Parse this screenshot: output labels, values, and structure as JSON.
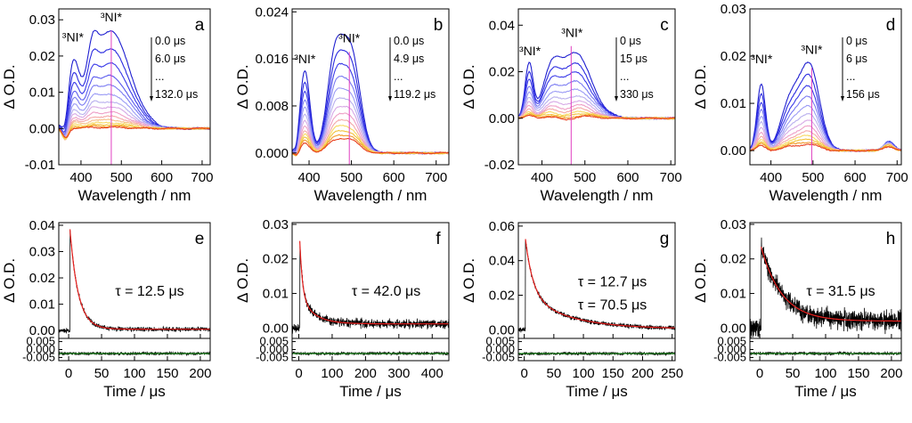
{
  "chart_data": [
    {
      "id": "a",
      "type": "line",
      "letter": "a",
      "xlabel": "Wavelength / nm",
      "ylabel": "Δ O.D.",
      "xlim": [
        345,
        720
      ],
      "ylim": [
        -0.01,
        0.033
      ],
      "xticks": [
        400,
        500,
        600,
        700
      ],
      "xtick_labels": [
        "400",
        "500",
        "600",
        "700"
      ],
      "yticks": [
        -0.01,
        0,
        0.01,
        0.02,
        0.03
      ],
      "ytick_labels": [
        "-0.01",
        "0.00",
        "0.01",
        "0.02",
        "0.03"
      ],
      "peak_labels": [
        {
          "text": "³NI*",
          "x": 380,
          "y": 0.024
        },
        {
          "text": "³NI*",
          "x": 475,
          "y": 0.0295
        }
      ],
      "legend": [
        "0.0 μs",
        "6.0 μs",
        "...",
        "132.0 μs"
      ],
      "marker_x": 475,
      "peaks": [
        {
          "x": 380,
          "w": 14,
          "h": 0.55
        },
        {
          "x": 472,
          "w": 48,
          "h": 1.0
        },
        {
          "x": 428,
          "w": 12,
          "h": 0.3
        }
      ],
      "amplitudes": [
        0.027,
        0.022,
        0.018,
        0.0145,
        0.012,
        0.0095,
        0.0075,
        0.006,
        0.0045,
        0.0033,
        0.0024,
        0.0016,
        0.001,
        0.0006,
        0.0003
      ],
      "dip": {
        "x": 362,
        "w": 8,
        "h": -0.006
      }
    },
    {
      "id": "b",
      "type": "line",
      "letter": "b",
      "xlabel": "Wavelength / nm",
      "ylabel": "Δ O.D.",
      "xlim": [
        360,
        730
      ],
      "ylim": [
        -0.002,
        0.0245
      ],
      "xticks": [
        400,
        500,
        600,
        700
      ],
      "xtick_labels": [
        "400",
        "500",
        "600",
        "700"
      ],
      "yticks": [
        0,
        0.008,
        0.016,
        0.024
      ],
      "ytick_labels": [
        "0.000",
        "0.008",
        "0.016",
        "0.024"
      ],
      "peak_labels": [
        {
          "text": "³NI*",
          "x": 390,
          "y": 0.0153
        },
        {
          "text": "³NI*",
          "x": 495,
          "y": 0.0188
        }
      ],
      "legend": [
        "0.0 μs",
        "4.9 μs",
        "...",
        "119.2 μs"
      ],
      "marker_x": 495,
      "peaks": [
        {
          "x": 390,
          "w": 12,
          "h": 0.82
        },
        {
          "x": 460,
          "w": 18,
          "h": 0.85
        },
        {
          "x": 498,
          "w": 22,
          "h": 1.0
        }
      ],
      "amplitudes": [
        0.0172,
        0.0148,
        0.0128,
        0.011,
        0.0094,
        0.008,
        0.0068,
        0.0057,
        0.0047,
        0.0039,
        0.0032,
        0.0026,
        0.0021
      ],
      "dip": {
        "x": 372,
        "w": 6,
        "h": -0.002
      }
    },
    {
      "id": "c",
      "type": "line",
      "letter": "c",
      "xlabel": "Wavelength / nm",
      "ylabel": "Δ O.D.",
      "xlim": [
        345,
        710
      ],
      "ylim": [
        -0.02,
        0.047
      ],
      "xticks": [
        400,
        500,
        600,
        700
      ],
      "xtick_labels": [
        "400",
        "500",
        "600",
        "700"
      ],
      "yticks": [
        -0.02,
        0,
        0.02,
        0.04
      ],
      "ytick_labels": [
        "-0.02",
        "0.00",
        "0.02",
        "0.04"
      ],
      "peak_labels": [
        {
          "text": "³NI*",
          "x": 372,
          "y": 0.027
        },
        {
          "text": "³NI*",
          "x": 470,
          "y": 0.035
        }
      ],
      "legend": [
        "0 μs",
        "15 μs",
        "...",
        "330 μs"
      ],
      "marker_x": 468,
      "peaks": [
        {
          "x": 370,
          "w": 9,
          "h": 0.72
        },
        {
          "x": 470,
          "w": 40,
          "h": 1.0
        },
        {
          "x": 420,
          "w": 18,
          "h": 0.35
        }
      ],
      "amplitudes": [
        0.031,
        0.026,
        0.022,
        0.018,
        0.0145,
        0.0115,
        0.009,
        0.007,
        0.0053,
        0.0039,
        0.0028,
        0.0019,
        0.0012
      ],
      "dip": {
        "x": 455,
        "w": 20,
        "h": -0.004
      }
    },
    {
      "id": "d",
      "type": "line",
      "letter": "d",
      "xlabel": "Wavelength / nm",
      "ylabel": "Δ O.D.",
      "xlim": [
        350,
        710
      ],
      "ylim": [
        -0.003,
        0.03
      ],
      "xticks": [
        400,
        500,
        600,
        700
      ],
      "xtick_labels": [
        "400",
        "500",
        "600",
        "700"
      ],
      "yticks": [
        0,
        0.01,
        0.02,
        0.03
      ],
      "ytick_labels": [
        "0.00",
        "0.01",
        "0.02",
        "0.03"
      ],
      "peak_labels": [
        {
          "text": "³NI*",
          "x": 378,
          "y": 0.0185
        },
        {
          "text": "³NI*",
          "x": 497,
          "y": 0.0205
        }
      ],
      "legend": [
        "0 μs",
        "6 μs",
        "...",
        "156 μs"
      ],
      "marker_x": 497,
      "peaks": [
        {
          "x": 377,
          "w": 10,
          "h": 0.8
        },
        {
          "x": 492,
          "w": 24,
          "h": 1.0
        },
        {
          "x": 445,
          "w": 22,
          "h": 0.55
        }
      ],
      "amplitudes": [
        0.0175,
        0.015,
        0.0128,
        0.0108,
        0.009,
        0.0074,
        0.006,
        0.0048,
        0.0038,
        0.003,
        0.0023,
        0.0017,
        0.0012
      ],
      "dip": {
        "x": 680,
        "w": 12,
        "h": 0.002
      }
    },
    {
      "id": "e",
      "type": "line",
      "letter": "e",
      "xlabel": "Time / μs",
      "ylabel": "Δ O.D.",
      "xlim": [
        -15,
        215
      ],
      "ylim": [
        -0.003,
        0.041
      ],
      "xticks": [
        0,
        50,
        100,
        150,
        200
      ],
      "xtick_labels": [
        "0",
        "50",
        "100",
        "150",
        "200"
      ],
      "yticks": [
        0,
        0.01,
        0.02,
        0.03,
        0.04
      ],
      "ytick_labels": [
        "0.00",
        "0.01",
        "0.02",
        "0.03",
        "0.04"
      ],
      "residual_ylim": [
        -0.007,
        0.007
      ],
      "residual_yticks": [
        -0.005,
        0,
        0.005
      ],
      "residual_ytick_labels": [
        "-0.005",
        "0.000",
        "0.005"
      ],
      "annotations": [
        "τ = 12.5 μs"
      ],
      "decay": {
        "t0": 2,
        "a1": 0.038,
        "tau1": 12.5,
        "a2": 0,
        "tau2": 1,
        "offset": 0.0005,
        "noise": 0.0008
      },
      "fit_line": "red",
      "data_line": "black",
      "residual_line": "green"
    },
    {
      "id": "f",
      "type": "line",
      "letter": "f",
      "xlabel": "Time / μs",
      "ylabel": "Δ O.D.",
      "xlim": [
        -20,
        450
      ],
      "ylim": [
        -0.003,
        0.0305
      ],
      "xticks": [
        0,
        100,
        200,
        300,
        400
      ],
      "xtick_labels": [
        "0",
        "100",
        "200",
        "300",
        "400"
      ],
      "yticks": [
        0,
        0.01,
        0.02,
        0.03
      ],
      "ytick_labels": [
        "0.00",
        "0.01",
        "0.02",
        "0.03"
      ],
      "residual_ylim": [
        -0.007,
        0.007
      ],
      "residual_yticks": [
        -0.005,
        0,
        0.005
      ],
      "residual_ytick_labels": [
        "-0.005",
        "0.000",
        "0.005"
      ],
      "annotations": [
        "τ = 42.0 μs"
      ],
      "decay": {
        "t0": 3,
        "a1": 0.016,
        "tau1": 8,
        "a2": 0.008,
        "tau2": 42,
        "offset": 0.0012,
        "noise": 0.0012
      },
      "fit_line": "red",
      "data_line": "black",
      "residual_line": "green"
    },
    {
      "id": "g",
      "type": "line",
      "letter": "g",
      "xlabel": "Time / μs",
      "ylabel": "Δ O.D.",
      "xlim": [
        -10,
        255
      ],
      "ylim": [
        -0.005,
        0.062
      ],
      "xticks": [
        0,
        50,
        100,
        150,
        200,
        250
      ],
      "xtick_labels": [
        "0",
        "50",
        "100",
        "150",
        "200",
        "250"
      ],
      "yticks": [
        0,
        0.02,
        0.04,
        0.06
      ],
      "ytick_labels": [
        "0.00",
        "0.02",
        "0.04",
        "0.06"
      ],
      "residual_ylim": [
        -0.007,
        0.007
      ],
      "residual_yticks": [
        -0.005,
        0,
        0.005
      ],
      "residual_ytick_labels": [
        "-0.005",
        "0.000",
        "0.005"
      ],
      "annotations": [
        "τ = 12.7 μs",
        "τ = 70.5 μs"
      ],
      "decay": {
        "t0": 2,
        "a1": 0.032,
        "tau1": 12.7,
        "a2": 0.02,
        "tau2": 70.5,
        "offset": 0.0005,
        "noise": 0.0012
      },
      "fit_line": "red",
      "data_line": "black",
      "residual_line": "green"
    },
    {
      "id": "h",
      "type": "line",
      "letter": "h",
      "xlabel": "Time / μs",
      "ylabel": "Δ O.D.",
      "xlim": [
        -15,
        215
      ],
      "ylim": [
        -0.003,
        0.0305
      ],
      "xticks": [
        0,
        50,
        100,
        150,
        200
      ],
      "xtick_labels": [
        "0",
        "50",
        "100",
        "150",
        "200"
      ],
      "yticks": [
        0,
        0.01,
        0.02,
        0.03
      ],
      "ytick_labels": [
        "0.00",
        "0.01",
        "0.02",
        "0.03"
      ],
      "residual_ylim": [
        -0.007,
        0.007
      ],
      "residual_yticks": [
        -0.005,
        0,
        0.005
      ],
      "residual_ytick_labels": [
        "-0.005",
        "0.000",
        "0.005"
      ],
      "annotations": [
        "τ = 31.5 μs"
      ],
      "decay": {
        "t0": 2,
        "a1": 0.0215,
        "tau1": 31.5,
        "a2": 0,
        "tau2": 1,
        "offset": 0.002,
        "noise": 0.0028
      },
      "fit_line": "red",
      "data_line": "black",
      "residual_line": "green"
    }
  ]
}
